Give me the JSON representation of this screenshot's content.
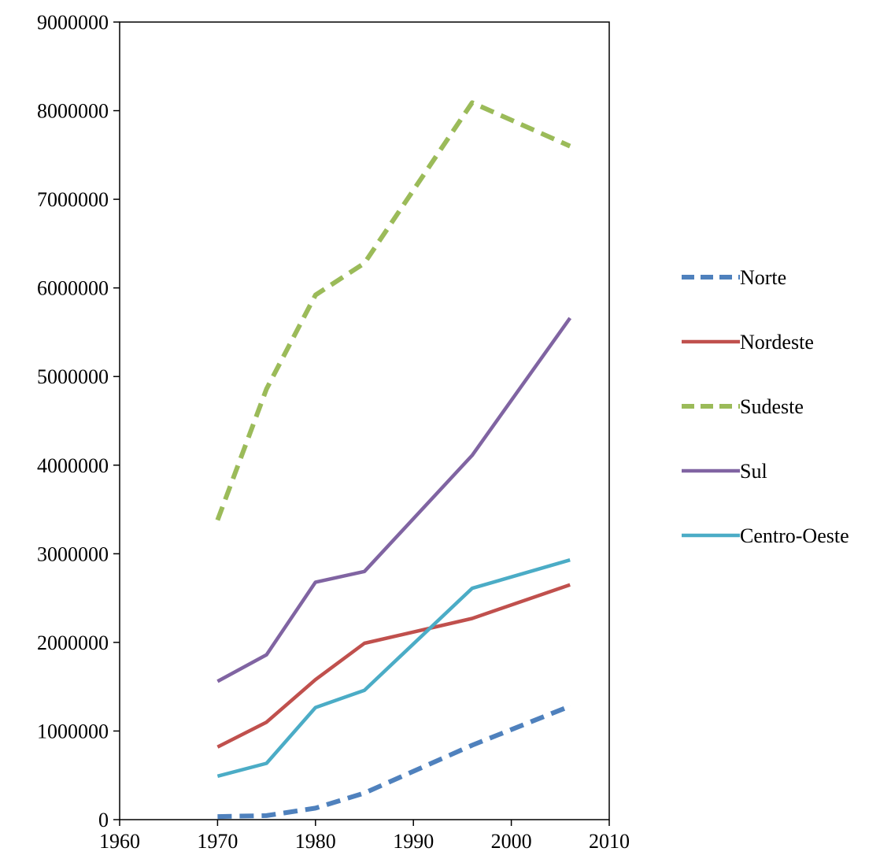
{
  "chart_data": {
    "type": "line",
    "title": "",
    "xlabel": "",
    "ylabel": "",
    "xlim": [
      1960,
      2010
    ],
    "ylim": [
      0,
      9000000
    ],
    "xticks": [
      1960,
      1970,
      1980,
      1990,
      2000,
      2010
    ],
    "yticks": [
      0,
      1000000,
      2000000,
      3000000,
      4000000,
      5000000,
      6000000,
      7000000,
      8000000,
      9000000
    ],
    "grid": false,
    "legend_position": "right",
    "series": [
      {
        "name": "Norte",
        "color": "#4F81BD",
        "dashed": true,
        "x": [
          1970,
          1975,
          1980,
          1985,
          1996,
          2006
        ],
        "y": [
          35000,
          45000,
          130000,
          300000,
          840000,
          1280000
        ]
      },
      {
        "name": "Nordeste",
        "color": "#C0504D",
        "dashed": false,
        "x": [
          1970,
          1975,
          1980,
          1985,
          1996,
          2006
        ],
        "y": [
          820000,
          1100000,
          1580000,
          1990000,
          2270000,
          2650000
        ]
      },
      {
        "name": "Sudeste",
        "color": "#9BBB59",
        "dashed": true,
        "x": [
          1970,
          1975,
          1980,
          1985,
          1996,
          2006
        ],
        "y": [
          3380000,
          4860000,
          5920000,
          6280000,
          8090000,
          7600000
        ]
      },
      {
        "name": "Sul",
        "color": "#8064A2",
        "dashed": false,
        "x": [
          1970,
          1975,
          1980,
          1985,
          1996,
          2006
        ],
        "y": [
          1560000,
          1860000,
          2680000,
          2800000,
          4110000,
          5660000
        ]
      },
      {
        "name": "Centro-Oeste",
        "color": "#4BACC6",
        "dashed": false,
        "x": [
          1970,
          1975,
          1980,
          1985,
          1996,
          2006
        ],
        "y": [
          490000,
          635000,
          1265000,
          1460000,
          2610000,
          2930000
        ]
      }
    ]
  }
}
